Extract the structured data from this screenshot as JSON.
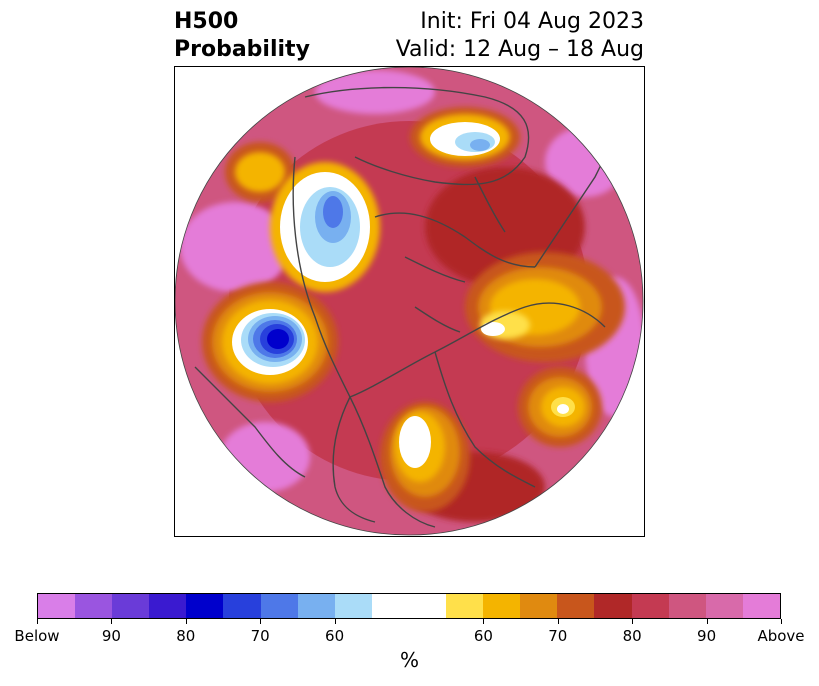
{
  "header": {
    "title_line1": "H500",
    "title_line2": "Probability",
    "init_text": "Init: Fri 04 Aug 2023",
    "valid_text": "Valid: 12 Aug – 18 Aug"
  },
  "colorbar": {
    "unit": "%",
    "tick_labels": [
      "Below",
      "90",
      "80",
      "70",
      "60",
      "60",
      "70",
      "80",
      "90",
      "Above"
    ],
    "colors": [
      "#d97ee8",
      "#9a55e0",
      "#6a3bd8",
      "#3a1ad0",
      "#0000cc",
      "#2840dc",
      "#4e78e8",
      "#78b0f0",
      "#aadcf8",
      "#ffffff",
      "#ffe04a",
      "#f4b400",
      "#e08a10",
      "#c8561c",
      "#b02828",
      "#c43a52",
      "#cf5680",
      "#d86aaa",
      "#e47cd8"
    ]
  },
  "map": {
    "projection": "polar-stereographic",
    "region": "Northern Hemisphere",
    "variable": "H500 probability",
    "colors": {
      "above_extreme": "#e47cd8",
      "above_high": "#cf5680",
      "above_mid": "#c43a52",
      "above_low": "#b02828",
      "above_70": "#c8561c",
      "above_60": "#e08a10",
      "above_55": "#f4b400",
      "above_50": "#ffe04a",
      "neutral": "#ffffff",
      "below_60": "#aadcf8",
      "below_70": "#78b0f0",
      "below_80": "#4e78e8",
      "below_90": "#0000cc",
      "coastline": "#444444"
    }
  }
}
